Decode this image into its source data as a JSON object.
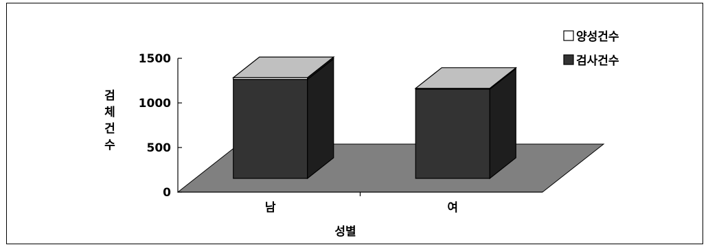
{
  "chart_data": {
    "type": "bar",
    "style": "3d-stacked",
    "categories": [
      "남",
      "여"
    ],
    "series": [
      {
        "name": "양성건수",
        "values": [
          20,
          10
        ],
        "color": "#c0c0c0"
      },
      {
        "name": "검사건수",
        "values": [
          1110,
          1000
        ],
        "color": "#333333"
      }
    ],
    "xlabel": "성별",
    "ylabel": "검체건수",
    "ylim": [
      0,
      1500
    ],
    "yticks": [
      "0",
      "500",
      "1000",
      "1500"
    ],
    "legend_position": "top-right",
    "grid": false,
    "floor_color": "#808080",
    "top_face_color": "#c0c0c0",
    "side_face_color": "#1e1e1e"
  }
}
